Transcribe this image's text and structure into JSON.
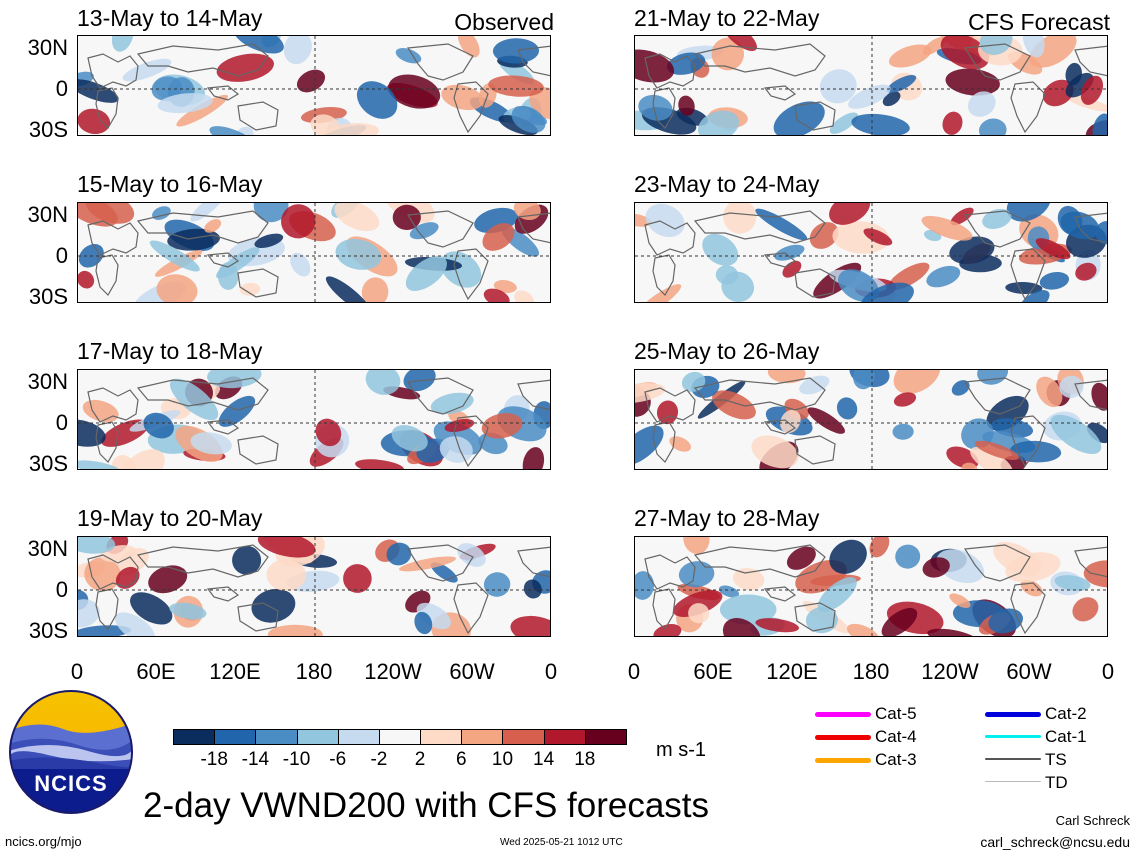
{
  "panels": [
    {
      "title": "13-May to 14-May",
      "tag": "Observed"
    },
    {
      "title": "21-May to 22-May",
      "tag": "CFS Forecast"
    },
    {
      "title": "15-May to 16-May",
      "tag": ""
    },
    {
      "title": "23-May to 24-May",
      "tag": ""
    },
    {
      "title": "17-May to 18-May",
      "tag": ""
    },
    {
      "title": "25-May to 26-May",
      "tag": ""
    },
    {
      "title": "19-May to 20-May",
      "tag": ""
    },
    {
      "title": "27-May to 28-May",
      "tag": ""
    }
  ],
  "yaxis": [
    "30N",
    "0",
    "30S"
  ],
  "xaxis": [
    "0",
    "60E",
    "120E",
    "180",
    "120W",
    "60W",
    "0"
  ],
  "colorbar": {
    "colors": [
      "#0b2d5e",
      "#2166ac",
      "#4a8cc4",
      "#92c5de",
      "#c6dbef",
      "#f7f7f7",
      "#fddbc7",
      "#f4a582",
      "#d6604d",
      "#b2182b",
      "#67001f"
    ],
    "ticks": [
      "-18",
      "-14",
      "-10",
      "-6",
      "-2",
      "2",
      "6",
      "10",
      "14",
      "18"
    ],
    "units": "m s-1"
  },
  "storm_legend": [
    {
      "label": "Cat-5",
      "color": "#ff00ff"
    },
    {
      "label": "Cat-2",
      "color": "#0000dd"
    },
    {
      "label": "Cat-4",
      "color": "#ee0000"
    },
    {
      "label": "Cat-1",
      "color": "#00f0f0"
    },
    {
      "label": "Cat-3",
      "color": "#ffa500"
    },
    {
      "label": "TS",
      "color": "#555555"
    },
    {
      "label": "TD",
      "color": "#bbbbbb"
    }
  ],
  "logo_text": "NCICS",
  "main_title": "2-day VWND200 with CFS forecasts",
  "credit_name": "Carl Schreck",
  "credit_email": "carl_schreck@ncsu.edu",
  "site": "ncics.org/mjo",
  "timestamp": "Wed 2025-05-21 1012 UTC"
}
